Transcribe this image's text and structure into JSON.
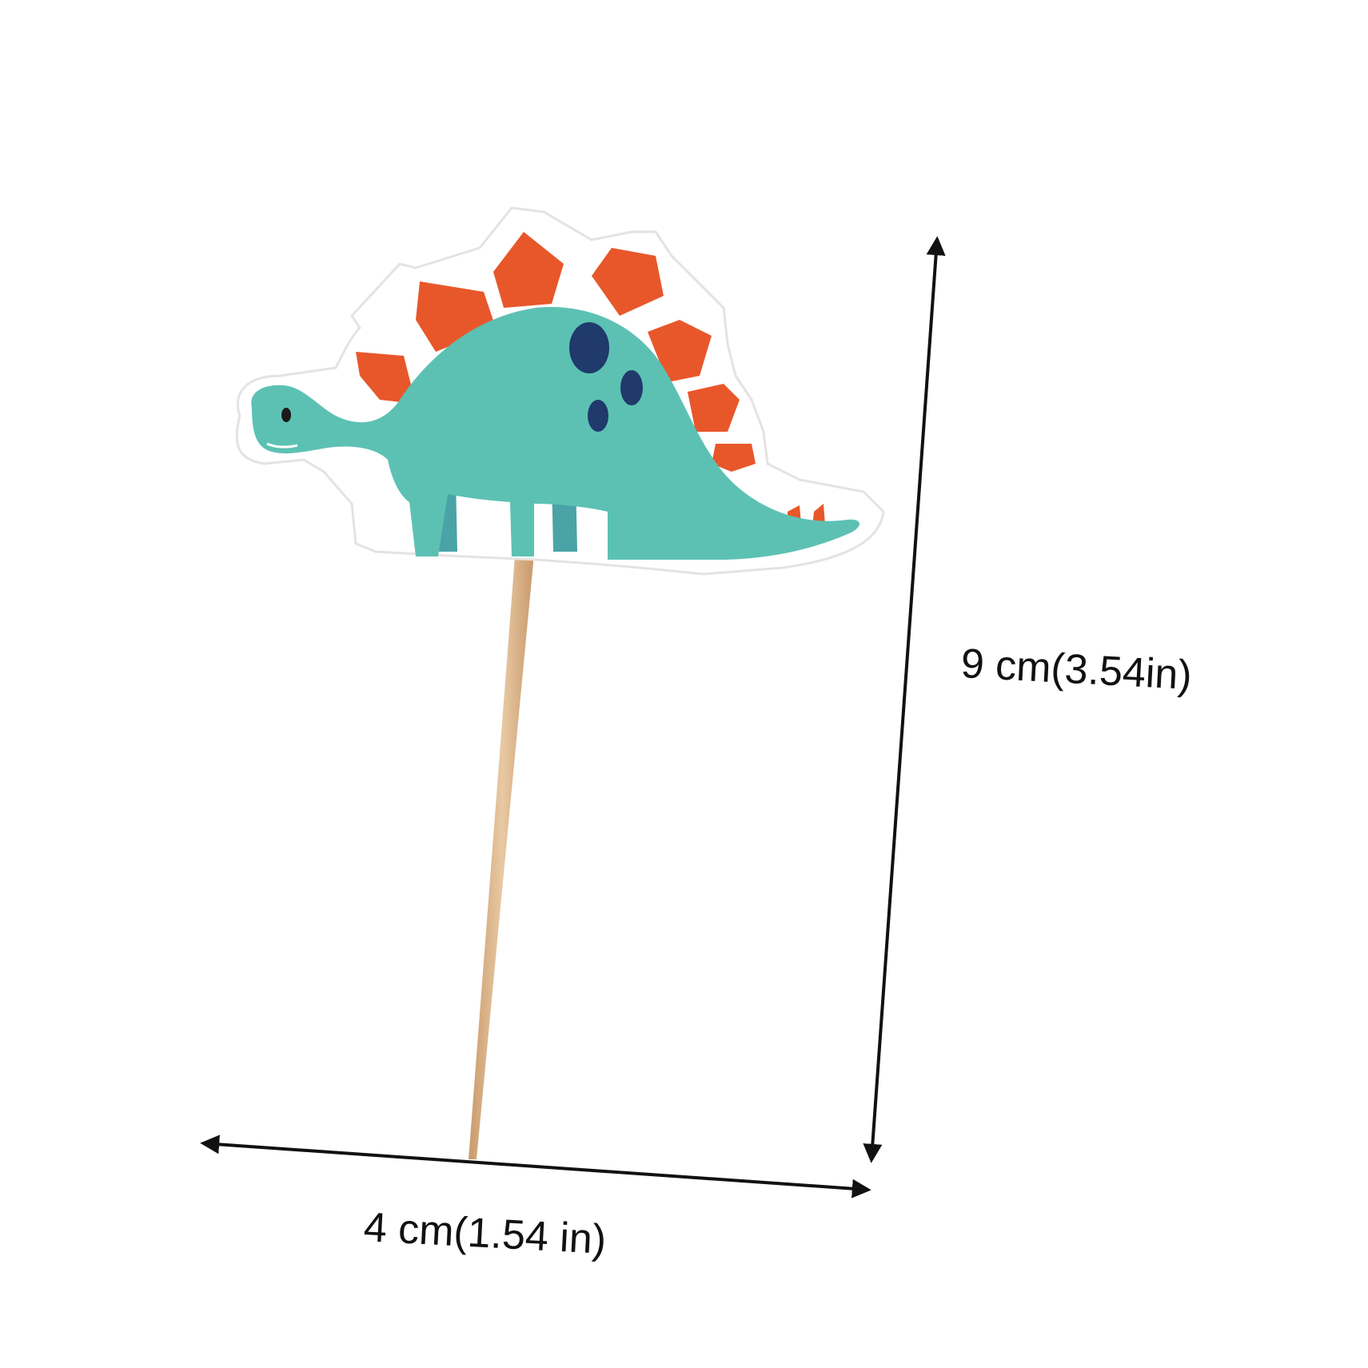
{
  "dimensions": {
    "height_label": "9 cm(3.54in)",
    "width_label": "4 cm(1.54 in)"
  },
  "colors": {
    "card": "#ffffff",
    "body": "#5cc1b3",
    "legs_back": "#4aa3a6",
    "spikes": "#e8572a",
    "spots": "#1f3a6b",
    "stick": "#d9b48a",
    "arrow": "#111111"
  },
  "product": {
    "name": "dinosaur-cupcake-topper"
  }
}
